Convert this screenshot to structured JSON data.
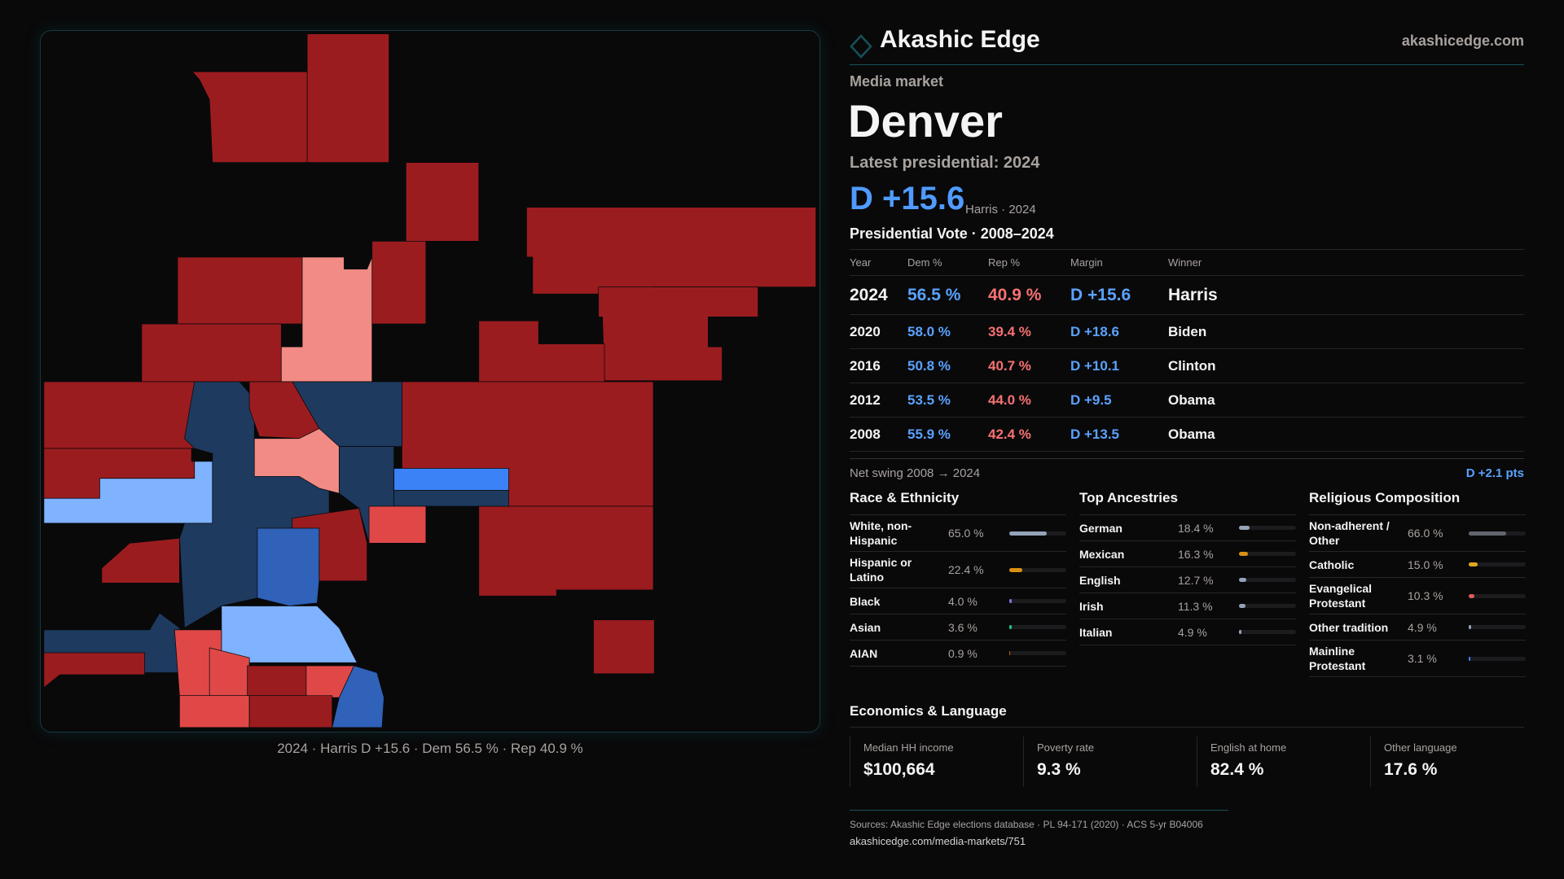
{
  "brand": {
    "name": "Akashic Edge",
    "site": "akashicedge.com",
    "accent": "#17505a"
  },
  "header": {
    "kicker": "Media market",
    "title": "Denver",
    "latest_label": "Latest presidential: 2024",
    "headline_margin": "D +15.6",
    "headline_sub": "Harris · 2024"
  },
  "vote": {
    "title": "Presidential Vote · 2008–2024",
    "columns": [
      "Year",
      "Dem %",
      "Rep %",
      "Margin",
      "Winner"
    ],
    "rows": [
      [
        "2024",
        "56.5 %",
        "40.9 %",
        "D +15.6",
        "Harris"
      ],
      [
        "2020",
        "58.0 %",
        "39.4 %",
        "D +18.6",
        "Biden"
      ],
      [
        "2016",
        "50.8 %",
        "40.7 %",
        "D +10.1",
        "Clinton"
      ],
      [
        "2012",
        "53.5 %",
        "44.0 %",
        "D +9.5",
        "Obama"
      ],
      [
        "2008",
        "55.9 %",
        "42.4 %",
        "D +13.5",
        "Obama"
      ]
    ],
    "swing_label": "Net swing 2008 → 2024",
    "swing_value": "D +2.1 pts"
  },
  "sections": [
    {
      "title": "Race & Ethnicity",
      "items": [
        {
          "label": "White, non-Hispanic",
          "pct": "65.0 %",
          "value": 65.0,
          "color": "#94a3b8"
        },
        {
          "label": "Hispanic or Latino",
          "pct": "22.4 %",
          "value": 22.4,
          "color": "#d99012"
        },
        {
          "label": "Black",
          "pct": "4.0 %",
          "value": 4.0,
          "color": "#8b6fe0"
        },
        {
          "label": "Asian",
          "pct": "3.6 %",
          "value": 3.6,
          "color": "#22c08a"
        },
        {
          "label": "AIAN",
          "pct": "0.9 %",
          "value": 0.9,
          "color": "#c2610c"
        }
      ]
    },
    {
      "title": "Top Ancestries",
      "items": [
        {
          "label": "German",
          "pct": "18.4 %",
          "value": 18.4,
          "color": "#94a3b8"
        },
        {
          "label": "Mexican",
          "pct": "16.3 %",
          "value": 16.3,
          "color": "#d99012"
        },
        {
          "label": "English",
          "pct": "12.7 %",
          "value": 12.7,
          "color": "#94a3b8"
        },
        {
          "label": "Irish",
          "pct": "11.3 %",
          "value": 11.3,
          "color": "#94a3b8"
        },
        {
          "label": "Italian",
          "pct": "4.9 %",
          "value": 4.9,
          "color": "#94a3b8"
        }
      ]
    },
    {
      "title": "Religious Composition",
      "items": [
        {
          "label": "Non-adherent / Other",
          "pct": "66.0 %",
          "value": 66.0,
          "color": "#64666f"
        },
        {
          "label": "Catholic",
          "pct": "15.0 %",
          "value": 15.0,
          "color": "#e0a81c"
        },
        {
          "label": "Evangelical Protestant",
          "pct": "10.3 %",
          "value": 10.3,
          "color": "#e05a5a"
        },
        {
          "label": "Other tradition",
          "pct": "4.9 %",
          "value": 4.9,
          "color": "#94a3b8"
        },
        {
          "label": "Mainline Protestant",
          "pct": "3.1 %",
          "value": 3.1,
          "color": "#3b82f6"
        }
      ]
    }
  ],
  "economics": {
    "title": "Economics & Language",
    "cards": [
      {
        "label": "Median HH income",
        "value": "$100,664"
      },
      {
        "label": "Poverty rate",
        "value": "9.3 %"
      },
      {
        "label": "English at home",
        "value": "82.4 %"
      },
      {
        "label": "Other language",
        "value": "17.6 %"
      }
    ]
  },
  "footer": {
    "sources": "Sources: Akashic Edge elections database · PL 94-171 (2020) · ACS 5-yr B04006",
    "url": "akashicedge.com/media-markets/751"
  },
  "map": {
    "caption": "2024 · Harris D +15.6 · Dem 56.5 % · Rep 40.9 %",
    "colors": {
      "safeR": "#9b1c1f",
      "leanR": "#f28b85",
      "likelyR": "#e04848",
      "safeD": "#1e3a5f",
      "likelyD": "#3b82f6",
      "leanD": "#7fb2ff",
      "midD": "#2f62b8"
    }
  }
}
